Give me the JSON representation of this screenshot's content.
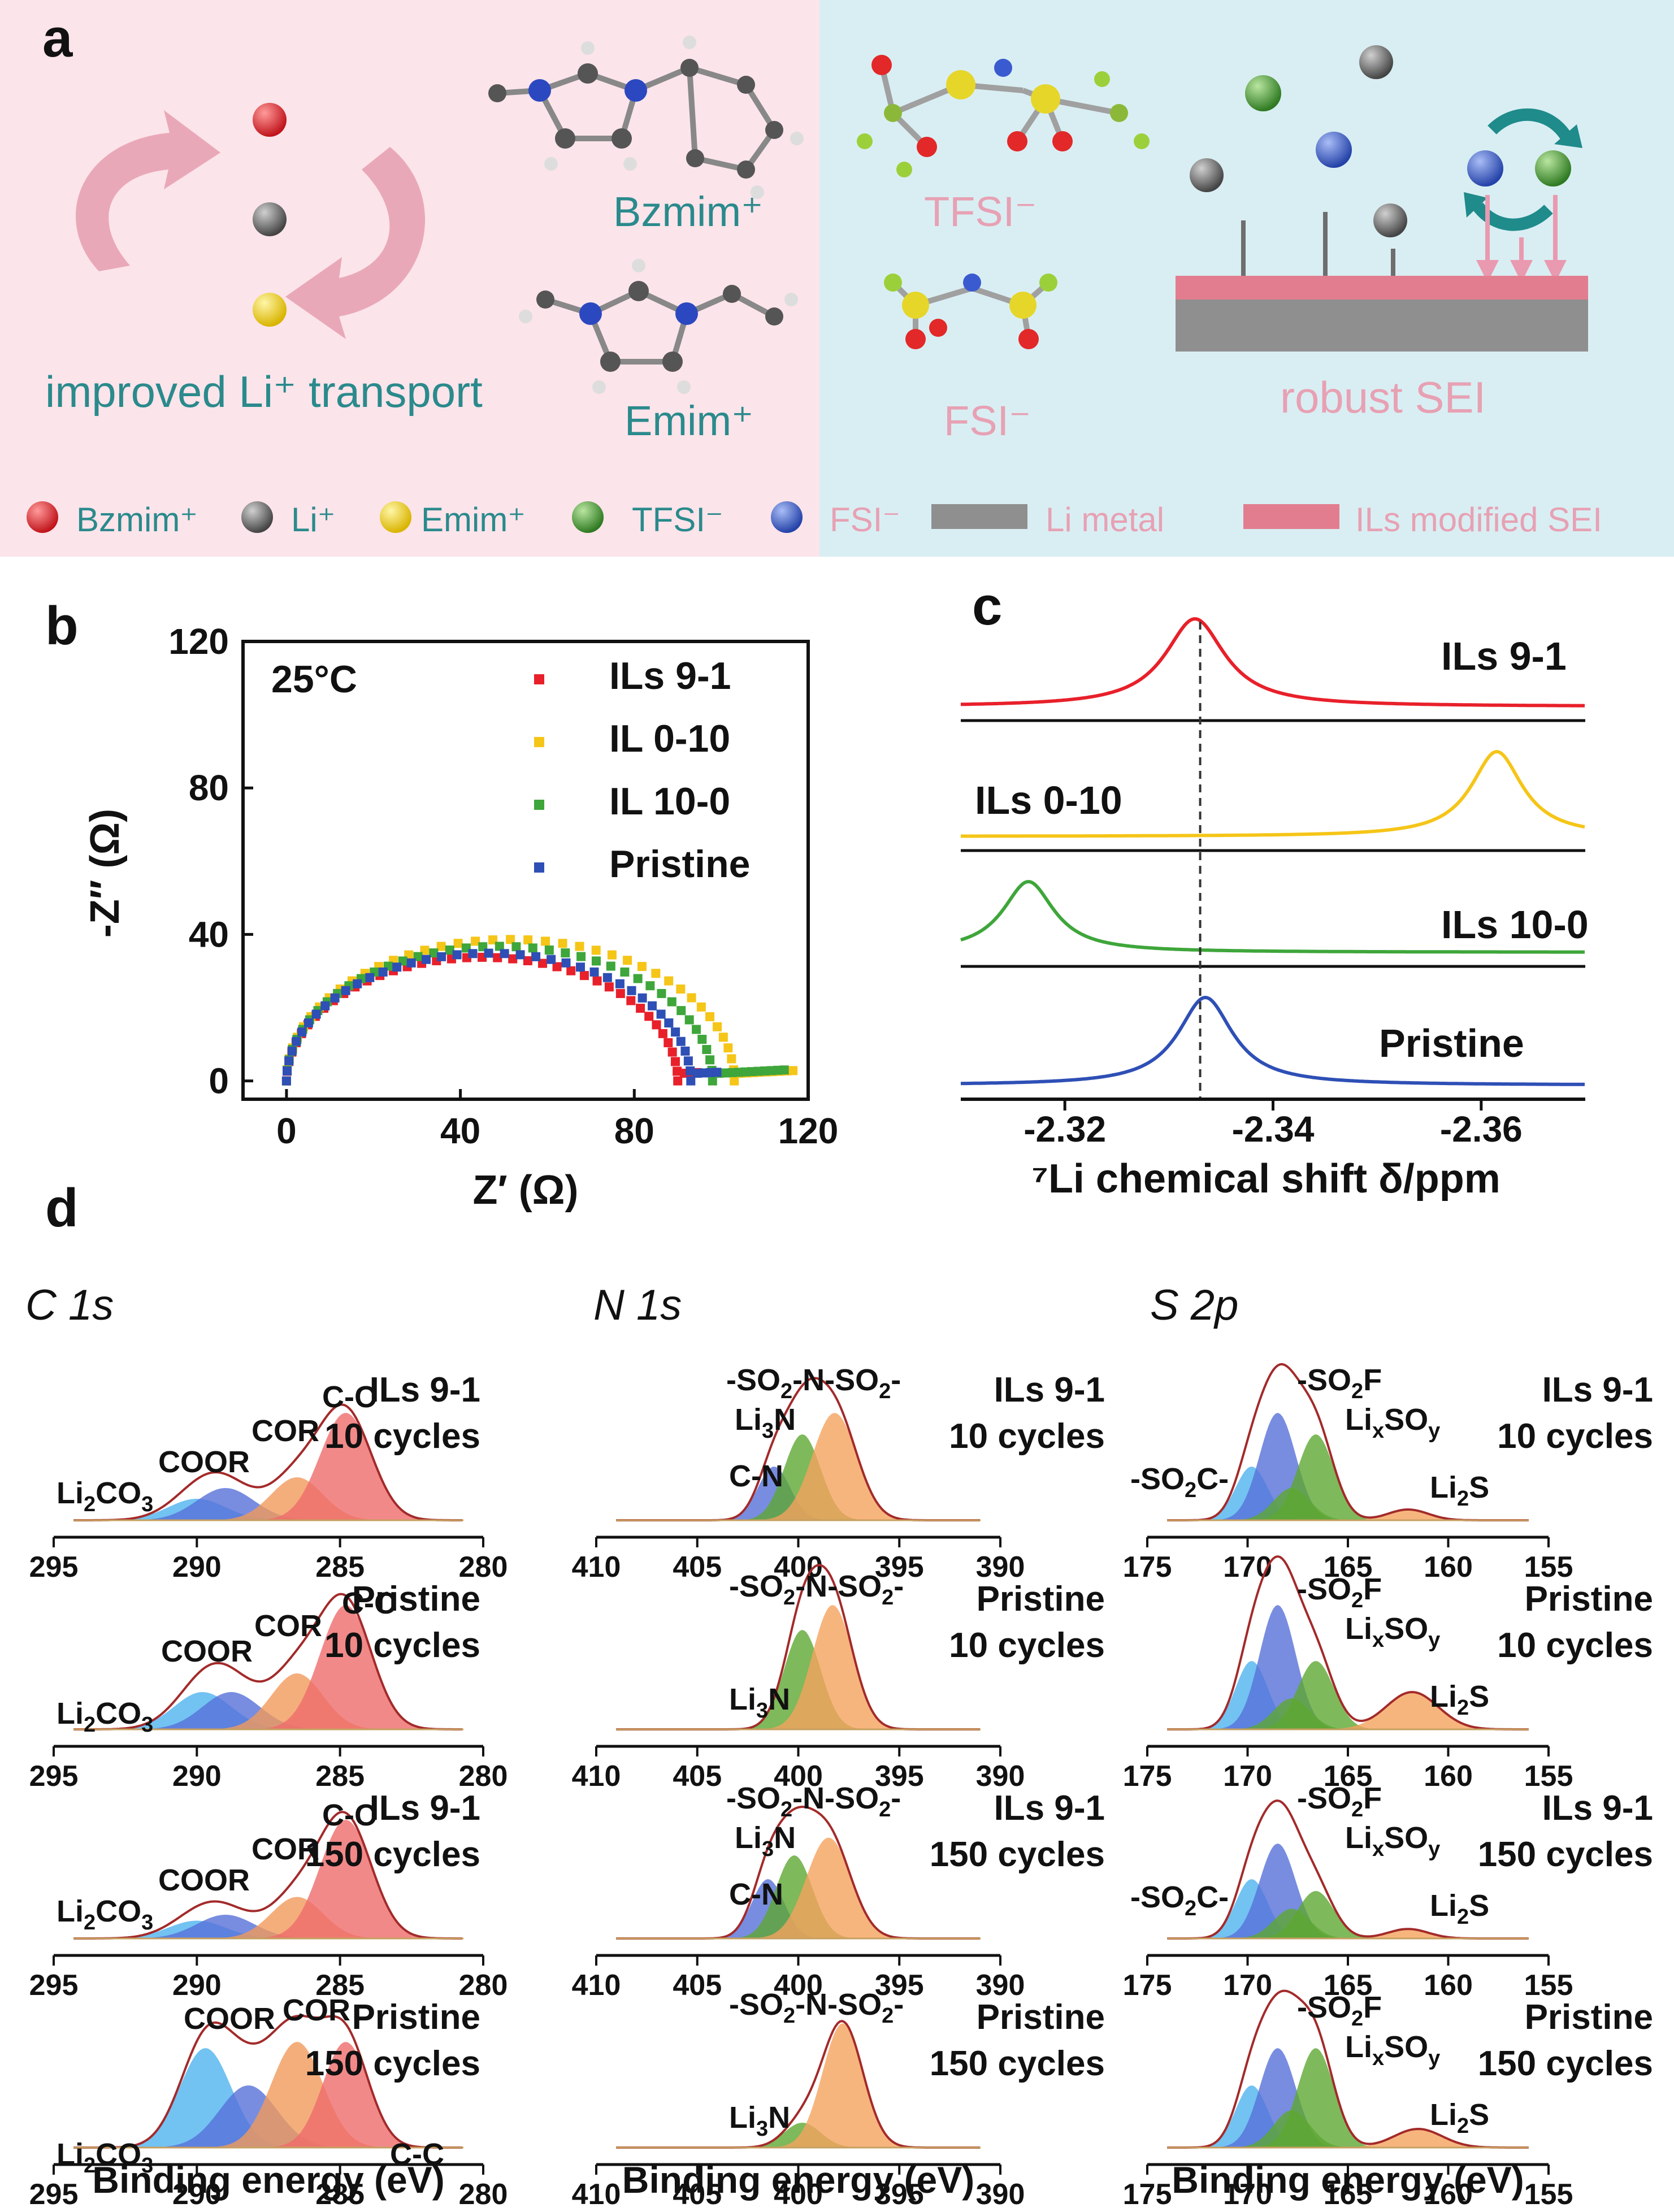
{
  "panel_a": {
    "letter": "a",
    "improved_transport": "improved Li⁺ transport",
    "bzmim_label": "Bzmim⁺",
    "emim_label": "Emim⁺",
    "tfsi_label": "TFSI⁻",
    "fsi_label": "FSI⁻",
    "robust_sei": "robust SEI",
    "legend": [
      "Bzmim⁺",
      "Li⁺",
      "Emim⁺",
      "TFSI⁻",
      "FSI⁻",
      "Li metal",
      "ILs modified SEI"
    ],
    "colors": {
      "left_bg": "#fbe4ea",
      "right_bg": "#d9eef3",
      "teal": "#2a8a8c",
      "pink": "#e7a1b3",
      "bzmim": "#d8232a",
      "li": "#6b6b6b",
      "emim": "#f0d21c",
      "tfsi": "#4e9b3a",
      "fsi": "#3f62c9",
      "li_metal": "#8f8f8f",
      "sei": "#e27d8f"
    }
  },
  "panel_b_letter": "b",
  "panel_c_letter": "c",
  "panel_d_letter": "d",
  "chart_data": [
    {
      "id": "b",
      "type": "scatter",
      "title": "",
      "annotation": "25°C",
      "xlabel": "Z′ (Ω)",
      "ylabel": "-Z″ (Ω)",
      "xlim": [
        -10,
        120
      ],
      "ylim": [
        -5,
        120
      ],
      "xticks": [
        0,
        40,
        80,
        120
      ],
      "yticks": [
        0,
        40,
        80,
        120
      ],
      "series": [
        {
          "name": "ILs 9-1",
          "color": "#e8202a",
          "r": 45,
          "end": 90,
          "tail_to": 95
        },
        {
          "name": "IL 0-10",
          "color": "#f5c518",
          "r": 51.5,
          "end": 103,
          "tail_to": 117
        },
        {
          "name": "IL 10-0",
          "color": "#3ea63a",
          "r": 49,
          "end": 98,
          "tail_to": 115
        },
        {
          "name": "Pristine",
          "color": "#2e4fb5",
          "r": 46.5,
          "end": 93,
          "tail_to": 100
        }
      ]
    },
    {
      "id": "c",
      "type": "line",
      "xlabel": "⁷Li chemical shift δ/ppm",
      "xlim": [
        -2.31,
        -2.37
      ],
      "xticks": [
        -2.32,
        -2.34,
        -2.36
      ],
      "xtick_labels": [
        "-2.32",
        "-2.34",
        "-2.36"
      ],
      "reference_line": -2.333,
      "series": [
        {
          "name": "ILs 9-1",
          "color": "#e8202a",
          "peak": -2.3325,
          "width": 0.0035
        },
        {
          "name": "ILs 0-10",
          "color": "#f5c518",
          "peak": -2.3615,
          "width": 0.003
        },
        {
          "name": "ILs 10-0",
          "color": "#3ea63a",
          "peak": -2.3165,
          "width": 0.003
        },
        {
          "name": "Pristine",
          "color": "#2e4fb5",
          "peak": -2.3335,
          "width": 0.0032
        }
      ]
    },
    {
      "id": "d",
      "type": "area",
      "xlabel": "Binding energy (eV)",
      "columns": [
        {
          "element": "C 1s",
          "xlim": [
            295,
            280
          ],
          "xticks": [
            295,
            290,
            285,
            280
          ],
          "rows": [
            {
              "sample": "ILs 9-1",
              "cycles": "10 cycles",
              "labels": [
                "Li2CO3",
                "COOR",
                "COR",
                "C-C"
              ],
              "peaks": [
                {
                  "c": 290,
                  "w": 1.0,
                  "h": 0.2,
                  "color": "#4fb3ef"
                },
                {
                  "c": 289,
                  "w": 1.0,
                  "h": 0.3,
                  "color": "#5670d8"
                },
                {
                  "c": 286.5,
                  "w": 0.9,
                  "h": 0.4,
                  "color": "#f19a5b"
                },
                {
                  "c": 284.8,
                  "w": 0.9,
                  "h": 1.0,
                  "color": "#ef6b6b"
                }
              ]
            },
            {
              "sample": "Pristine",
              "cycles": "10 cycles",
              "labels": [
                "Li2CO3",
                "COOR",
                "COR",
                "C-C"
              ],
              "peaks": [
                {
                  "c": 289.8,
                  "w": 1.0,
                  "h": 0.3,
                  "color": "#4fb3ef"
                },
                {
                  "c": 288.8,
                  "w": 1.0,
                  "h": 0.3,
                  "color": "#5670d8"
                },
                {
                  "c": 286.5,
                  "w": 0.9,
                  "h": 0.45,
                  "color": "#f19a5b"
                },
                {
                  "c": 284.8,
                  "w": 0.9,
                  "h": 1.0,
                  "color": "#ef6b6b"
                }
              ]
            },
            {
              "sample": "ILs 9-1",
              "cycles": "150 cycles",
              "labels": [
                "Li2CO3",
                "COOR",
                "COR",
                "C-C"
              ],
              "peaks": [
                {
                  "c": 290,
                  "w": 1.0,
                  "h": 0.15,
                  "color": "#4fb3ef"
                },
                {
                  "c": 289,
                  "w": 1.0,
                  "h": 0.2,
                  "color": "#5670d8"
                },
                {
                  "c": 286.5,
                  "w": 0.9,
                  "h": 0.35,
                  "color": "#f19a5b"
                },
                {
                  "c": 284.8,
                  "w": 0.9,
                  "h": 1.0,
                  "color": "#ef6b6b"
                }
              ]
            },
            {
              "sample": "Pristine",
              "cycles": "150 cycles",
              "labels": [
                "Li2CO3",
                "COOR",
                "COR",
                "C-C"
              ],
              "peaks": [
                {
                  "c": 289.7,
                  "w": 0.9,
                  "h": 0.8,
                  "color": "#4fb3ef"
                },
                {
                  "c": 288.2,
                  "w": 1.0,
                  "h": 0.5,
                  "color": "#5670d8"
                },
                {
                  "c": 286.5,
                  "w": 0.9,
                  "h": 0.85,
                  "color": "#f19a5b"
                },
                {
                  "c": 284.8,
                  "w": 0.8,
                  "h": 0.85,
                  "color": "#ef6b6b"
                }
              ]
            }
          ]
        },
        {
          "element": "N 1s",
          "xlim": [
            410,
            390
          ],
          "xticks": [
            410,
            405,
            400,
            395,
            390
          ],
          "rows": [
            {
              "sample": "ILs 9-1",
              "cycles": "10 cycles",
              "labels": [
                "-SO2-N-SO2-",
                "Li3N",
                "C-N"
              ],
              "peaks": [
                {
                  "c": 401.2,
                  "w": 0.8,
                  "h": 0.5,
                  "color": "#5670d8"
                },
                {
                  "c": 399.8,
                  "w": 0.9,
                  "h": 0.8,
                  "color": "#5ea832"
                },
                {
                  "c": 398.2,
                  "w": 1.1,
                  "h": 1.0,
                  "color": "#f5a35e"
                }
              ]
            },
            {
              "sample": "Pristine",
              "cycles": "10 cycles",
              "labels": [
                "-SO2-N-SO2-",
                "Li3N"
              ],
              "peaks": [
                {
                  "c": 399.8,
                  "w": 0.9,
                  "h": 0.8,
                  "color": "#5ea832"
                },
                {
                  "c": 398.3,
                  "w": 1.0,
                  "h": 1.0,
                  "color": "#f5a35e"
                }
              ]
            },
            {
              "sample": "ILs 9-1",
              "cycles": "150 cycles",
              "labels": [
                "-SO2-N-SO2-",
                "Li3N",
                "C-N"
              ],
              "peaks": [
                {
                  "c": 401.5,
                  "w": 0.8,
                  "h": 0.5,
                  "color": "#5670d8"
                },
                {
                  "c": 400.2,
                  "w": 0.9,
                  "h": 0.7,
                  "color": "#5ea832"
                },
                {
                  "c": 398.5,
                  "w": 1.1,
                  "h": 0.85,
                  "color": "#f5a35e"
                }
              ]
            },
            {
              "sample": "Pristine",
              "cycles": "150 cycles",
              "labels": [
                "-SO2-N-SO2-",
                "Li3N"
              ],
              "peaks": [
                {
                  "c": 399.8,
                  "w": 0.9,
                  "h": 0.2,
                  "color": "#5ea832"
                },
                {
                  "c": 397.8,
                  "w": 1.0,
                  "h": 1.0,
                  "color": "#f5a35e"
                }
              ]
            }
          ]
        },
        {
          "element": "S 2p",
          "xlim": [
            175,
            155
          ],
          "xticks": [
            175,
            170,
            165,
            160,
            155
          ],
          "rows": [
            {
              "sample": "ILs 9-1",
              "cycles": "10 cycles",
              "labels": [
                "-SO2F",
                "LixSOy",
                "-SO2C-",
                "Li2S"
              ],
              "peaks": [
                {
                  "c": 169.8,
                  "w": 0.8,
                  "h": 0.5,
                  "color": "#4fb3ef"
                },
                {
                  "c": 168.5,
                  "w": 0.9,
                  "h": 1.0,
                  "color": "#5670d8"
                },
                {
                  "c": 167.8,
                  "w": 0.9,
                  "h": 0.3,
                  "color": "#5ea832"
                },
                {
                  "c": 166.6,
                  "w": 0.9,
                  "h": 0.8,
                  "color": "#5ea832"
                },
                {
                  "c": 162,
                  "w": 1.0,
                  "h": 0.1,
                  "color": "#f5a35e"
                }
              ]
            },
            {
              "sample": "Pristine",
              "cycles": "10 cycles",
              "labels": [
                "-SO2F",
                "LixSOy",
                "Li2S"
              ],
              "peaks": [
                {
                  "c": 169.8,
                  "w": 0.8,
                  "h": 0.55,
                  "color": "#4fb3ef"
                },
                {
                  "c": 168.5,
                  "w": 0.9,
                  "h": 1.0,
                  "color": "#5670d8"
                },
                {
                  "c": 167.8,
                  "w": 0.9,
                  "h": 0.25,
                  "color": "#5ea832"
                },
                {
                  "c": 166.6,
                  "w": 0.9,
                  "h": 0.55,
                  "color": "#5ea832"
                },
                {
                  "c": 161.8,
                  "w": 1.3,
                  "h": 0.3,
                  "color": "#f5a35e"
                }
              ]
            },
            {
              "sample": "ILs 9-1",
              "cycles": "150 cycles",
              "labels": [
                "-SO2F",
                "LixSOy",
                "-SO2C-",
                "Li2S"
              ],
              "peaks": [
                {
                  "c": 169.8,
                  "w": 0.8,
                  "h": 0.5,
                  "color": "#4fb3ef"
                },
                {
                  "c": 168.5,
                  "w": 0.9,
                  "h": 0.8,
                  "color": "#5670d8"
                },
                {
                  "c": 167.8,
                  "w": 0.9,
                  "h": 0.25,
                  "color": "#5ea832"
                },
                {
                  "c": 166.6,
                  "w": 0.9,
                  "h": 0.4,
                  "color": "#5ea832"
                },
                {
                  "c": 162,
                  "w": 1.0,
                  "h": 0.08,
                  "color": "#f5a35e"
                }
              ]
            },
            {
              "sample": "Pristine",
              "cycles": "150 cycles",
              "labels": [
                "-SO2F",
                "LixSOy",
                "Li2S"
              ],
              "peaks": [
                {
                  "c": 169.8,
                  "w": 0.8,
                  "h": 0.5,
                  "color": "#4fb3ef"
                },
                {
                  "c": 168.5,
                  "w": 0.9,
                  "h": 0.8,
                  "color": "#5670d8"
                },
                {
                  "c": 167.8,
                  "w": 0.9,
                  "h": 0.3,
                  "color": "#5ea832"
                },
                {
                  "c": 166.6,
                  "w": 0.9,
                  "h": 0.8,
                  "color": "#5ea832"
                },
                {
                  "c": 161.5,
                  "w": 1.2,
                  "h": 0.15,
                  "color": "#f5a35e"
                }
              ]
            }
          ]
        }
      ]
    }
  ]
}
